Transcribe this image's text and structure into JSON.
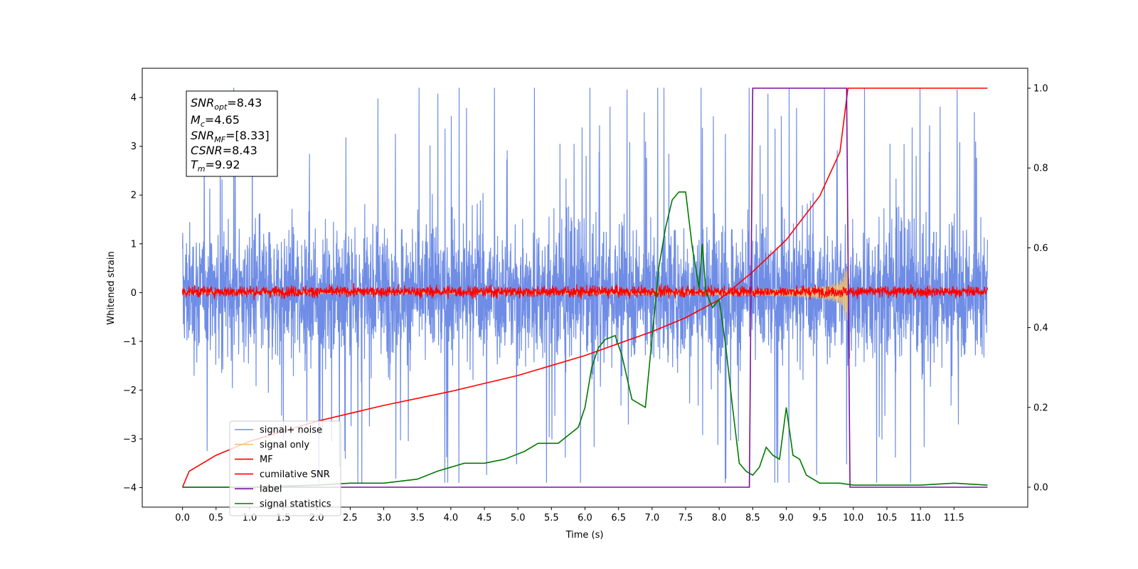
{
  "chart_data": {
    "type": "line",
    "title": "",
    "xlabel": "Time (s)",
    "ylabel": "Whitened strain",
    "ylabel_right": "",
    "xlim": [
      -0.6,
      12.6
    ],
    "ylim": [
      -4.4,
      4.6
    ],
    "ylim_right": [
      -0.05,
      1.05
    ],
    "x_ticks": [
      "0.0",
      "0.5",
      "1.0",
      "1.5",
      "2.0",
      "2.5",
      "3.0",
      "3.5",
      "4.0",
      "4.5",
      "5.0",
      "5.5",
      "6.0",
      "6.5",
      "7.0",
      "7.5",
      "8.0",
      "8.5",
      "9.0",
      "9.5",
      "10.0",
      "10.5",
      "11.0",
      "11.5"
    ],
    "y_ticks": [
      "4",
      "3",
      "2",
      "1",
      "0",
      "−1",
      "−2",
      "−3",
      "−4"
    ],
    "y_ticks_right": [
      "1.0",
      "0.8",
      "0.6",
      "0.4",
      "0.2",
      "0.0"
    ],
    "grid": false,
    "legend_position": "lower-left",
    "annotation": {
      "snr_opt": {
        "base": "SNR",
        "sub": "opt",
        "value": "=8.43"
      },
      "mc": {
        "base": "M",
        "sub": "c",
        "value": "=4.65"
      },
      "snr_mf": {
        "base": "SNR",
        "sub": "MF",
        "value": "=[8.33]"
      },
      "csnr": {
        "base": "CSNR",
        "sub": "",
        "value": "=8.43"
      },
      "tm": {
        "base": "T",
        "sub": "m",
        "value": "=9.92"
      }
    },
    "series": [
      {
        "name": "signal+ noise",
        "color": "#6f8de6",
        "axis": "left",
        "type": "noise",
        "x_range": [
          0,
          12
        ],
        "amplitude_range": [
          -3.9,
          4.2
        ]
      },
      {
        "name": "signal only",
        "color": "#f2c36b",
        "axis": "left",
        "type": "chirp",
        "x_range": [
          0,
          9.92
        ],
        "peak_amplitude": 0.6
      },
      {
        "name": "MF",
        "color": "#ff0000",
        "axis": "left",
        "type": "noise",
        "x_range": [
          0,
          12
        ],
        "amplitude_range": [
          -0.2,
          0.3
        ]
      },
      {
        "name": "cumilative SNR",
        "color": "#ff0000",
        "axis": "right",
        "x": [
          0,
          0.1,
          0.5,
          1,
          2,
          3,
          4,
          5,
          6,
          7,
          7.5,
          8,
          8.5,
          9,
          9.5,
          9.8,
          9.92,
          12
        ],
        "y": [
          0,
          0.04,
          0.08,
          0.115,
          0.165,
          0.205,
          0.24,
          0.28,
          0.33,
          0.39,
          0.425,
          0.47,
          0.54,
          0.62,
          0.73,
          0.84,
          1.0,
          1.0
        ]
      },
      {
        "name": "label",
        "color": "#7b0f9d",
        "axis": "right",
        "x": [
          0,
          8.45,
          8.5,
          9.9,
          9.95,
          12
        ],
        "y": [
          0,
          0,
          1,
          1,
          0,
          0
        ]
      },
      {
        "name": "signal statistics",
        "color": "#007a00",
        "axis": "right",
        "x": [
          0,
          1,
          2,
          2.5,
          3,
          3.5,
          3.8,
          4.2,
          4.5,
          4.8,
          5.1,
          5.3,
          5.6,
          5.9,
          6.0,
          6.1,
          6.2,
          6.3,
          6.45,
          6.55,
          6.7,
          6.9,
          7.1,
          7.2,
          7.3,
          7.4,
          7.5,
          7.6,
          7.7,
          7.75,
          7.8,
          7.9,
          8.0,
          8.1,
          8.2,
          8.3,
          8.4,
          8.5,
          8.6,
          8.7,
          8.8,
          8.9,
          9.0,
          9.1,
          9.2,
          9.3,
          9.5,
          9.8,
          10.0,
          11.0,
          11.5,
          12.0
        ],
        "y": [
          0.0,
          0.0,
          0.005,
          0.01,
          0.01,
          0.02,
          0.04,
          0.06,
          0.06,
          0.07,
          0.09,
          0.11,
          0.11,
          0.15,
          0.2,
          0.3,
          0.35,
          0.37,
          0.38,
          0.33,
          0.22,
          0.2,
          0.55,
          0.65,
          0.72,
          0.74,
          0.74,
          0.6,
          0.5,
          0.61,
          0.49,
          0.45,
          0.47,
          0.35,
          0.2,
          0.06,
          0.04,
          0.03,
          0.05,
          0.1,
          0.08,
          0.07,
          0.2,
          0.08,
          0.07,
          0.03,
          0.01,
          0.01,
          0.005,
          0.005,
          0.01,
          0.005
        ]
      }
    ]
  }
}
